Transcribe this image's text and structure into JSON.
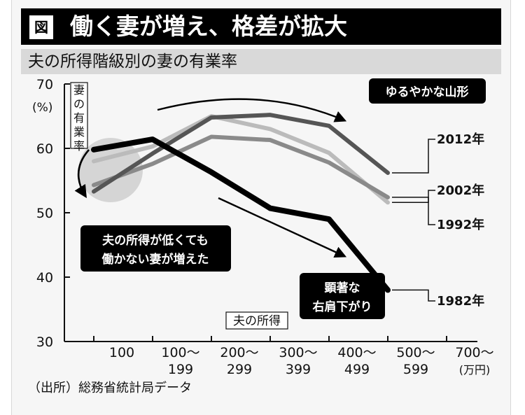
{
  "header": {
    "figure_mark": "図",
    "headline": "働く妻が増え、格差が拡大",
    "subtitle": "夫の所得階級別の妻の有業率"
  },
  "source": "（出所）総務省統計局データ",
  "chart_data": {
    "type": "line",
    "title": "夫の所得階級別の妻の有業率",
    "ylabel": "妻の有業率",
    "y_unit": "(%)",
    "xlabel": "夫の所得",
    "x_unit": "(万円)",
    "ylim": [
      30,
      70
    ],
    "yticks": [
      "70",
      "60",
      "50",
      "40",
      "30"
    ],
    "categories": [
      "100",
      "100〜199",
      "200〜299",
      "300〜399",
      "400〜499",
      "500〜599",
      "700〜"
    ],
    "x_tick_lines": [
      [
        "100"
      ],
      [
        "100〜",
        "199"
      ],
      [
        "200〜",
        "299"
      ],
      [
        "300〜",
        "399"
      ],
      [
        "400〜",
        "499"
      ],
      [
        "500〜",
        "599"
      ],
      [
        "700〜",
        "(万円)"
      ]
    ],
    "grid": false,
    "series": [
      {
        "name": "2012年",
        "color": "#555555",
        "x": [
          0.5,
          1.5,
          2.5,
          3.5,
          4.5,
          5.5
        ],
        "values": [
          53.3,
          59.2,
          64.8,
          65.2,
          63.5,
          56.2
        ]
      },
      {
        "name": "2002年",
        "color": "#bbbbbb",
        "x": [
          0.5,
          1.5,
          2.5,
          3.5,
          4.5,
          5.5
        ],
        "values": [
          58.0,
          60.3,
          65.0,
          63.0,
          59.3,
          51.6
        ]
      },
      {
        "name": "1992年",
        "color": "#8a8a8a",
        "x": [
          0.5,
          1.5,
          2.5,
          3.5,
          4.5,
          5.5
        ],
        "values": [
          54.3,
          57.6,
          61.8,
          61.3,
          57.8,
          52.4
        ]
      },
      {
        "name": "1982年",
        "color": "#000000",
        "x": [
          0.5,
          1.5,
          2.5,
          3.5,
          4.5,
          5.5
        ],
        "values": [
          59.8,
          61.4,
          56.3,
          50.7,
          49.0,
          38.0
        ]
      }
    ],
    "annotations": [
      {
        "id": "mountain",
        "text": [
          "ゆるやかな山形"
        ]
      },
      {
        "id": "low-income",
        "text": [
          "夫の所得が低くても",
          "働かない妻が増えた"
        ]
      },
      {
        "id": "decline",
        "text": [
          "顕著な",
          "右肩下がり"
        ]
      }
    ]
  }
}
